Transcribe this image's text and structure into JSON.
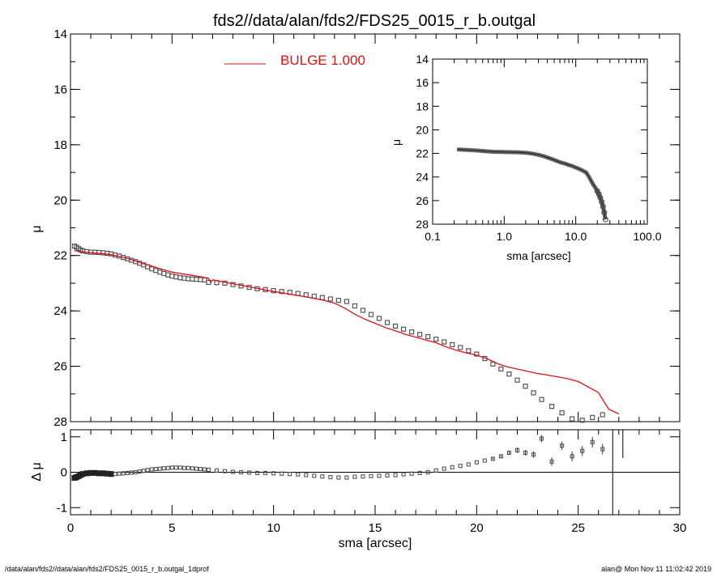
{
  "title": "fds2//data/alan/fds2/FDS25_0015_r_b.outgal",
  "legend": {
    "label": "BULGE  1.000",
    "color": "#e01010"
  },
  "footer": {
    "left": "/data/alan/fds2//data/alan/fds2/FDS25_0015_r_b.outgal_1dprof",
    "right": "alan@  Mon Nov 11 11:02:42 2019"
  },
  "chart_data": [
    {
      "name": "main-profile",
      "type": "scatter",
      "xlabel": "",
      "ylabel": "μ",
      "xlim": [
        0,
        30
      ],
      "ylim": [
        28,
        14
      ],
      "yticks": [
        "14",
        "16",
        "18",
        "20",
        "22",
        "24",
        "26",
        "28"
      ],
      "series": [
        {
          "name": "",
          "marker": "square",
          "color": "#555555",
          "x": [
            0.2,
            0.3,
            0.4,
            0.5,
            0.6,
            0.8,
            1.0,
            1.2,
            1.4,
            1.6,
            1.8,
            2.0,
            2.2,
            2.4,
            2.6,
            2.8,
            3.0,
            3.2,
            3.4,
            3.6,
            3.8,
            4.0,
            4.2,
            4.4,
            4.6,
            4.8,
            5.0,
            5.2,
            5.4,
            5.6,
            5.8,
            6.0,
            6.2,
            6.4,
            6.6,
            6.8,
            7.2,
            7.6,
            8.0,
            8.4,
            8.8,
            9.2,
            9.6,
            10.0,
            10.4,
            10.8,
            11.2,
            11.6,
            12.0,
            12.4,
            12.8,
            13.2,
            13.6,
            14.0,
            14.4,
            14.8,
            15.2,
            15.6,
            16.0,
            16.4,
            16.8,
            17.2,
            17.6,
            18.0,
            18.4,
            18.8,
            19.2,
            19.6,
            20.0,
            20.4,
            20.8,
            21.2,
            21.6,
            22.0,
            22.4,
            22.8,
            23.2,
            23.7,
            24.2,
            24.7,
            25.2,
            25.7,
            26.2
          ],
          "y": [
            21.66,
            21.7,
            21.75,
            21.8,
            21.83,
            21.86,
            21.88,
            21.88,
            21.89,
            21.9,
            21.92,
            21.94,
            21.98,
            22.02,
            22.07,
            22.12,
            22.17,
            22.22,
            22.28,
            22.34,
            22.41,
            22.48,
            22.54,
            22.6,
            22.65,
            22.7,
            22.74,
            22.77,
            22.8,
            22.82,
            22.84,
            22.85,
            22.86,
            22.87,
            22.88,
            22.97,
            22.98,
            23.0,
            23.05,
            23.1,
            23.15,
            23.2,
            23.23,
            23.27,
            23.3,
            23.33,
            23.37,
            23.42,
            23.47,
            23.52,
            23.57,
            23.62,
            23.66,
            23.82,
            23.98,
            24.13,
            24.27,
            24.42,
            24.55,
            24.66,
            24.76,
            24.85,
            24.93,
            25.02,
            25.12,
            25.22,
            25.32,
            25.44,
            25.56,
            25.72,
            25.92,
            26.1,
            26.28,
            26.5,
            26.72,
            26.96,
            27.2,
            27.45,
            27.68,
            27.9,
            27.95,
            27.85,
            27.75
          ]
        },
        {
          "name": "BULGE  1.000",
          "marker": "line",
          "color": "#e01010",
          "x": [
            0.2,
            0.5,
            1.0,
            1.5,
            2.0,
            2.5,
            3.0,
            3.5,
            4.0,
            4.5,
            5.0,
            5.5,
            6.0,
            6.5,
            6.8,
            6.9,
            7.0,
            7.5,
            8.0,
            8.5,
            9.0,
            9.5,
            10.0,
            10.5,
            11.0,
            11.5,
            12.0,
            12.5,
            13.0,
            13.5,
            14.0,
            14.5,
            15.0,
            15.5,
            16.0,
            16.5,
            17.0,
            17.5,
            18.0,
            18.5,
            19.0,
            19.5,
            20.0,
            20.5,
            21.0,
            21.5,
            22.0,
            22.5,
            23.0,
            23.5,
            24.0,
            24.5,
            25.0,
            25.5,
            26.0,
            26.5,
            27.0
          ],
          "y": [
            21.82,
            21.86,
            21.9,
            21.93,
            21.97,
            22.05,
            22.15,
            22.27,
            22.38,
            22.5,
            22.6,
            22.66,
            22.72,
            22.78,
            22.82,
            22.97,
            22.88,
            22.95,
            23.02,
            23.09,
            23.16,
            23.23,
            23.3,
            23.36,
            23.42,
            23.48,
            23.55,
            23.62,
            23.72,
            23.9,
            24.12,
            24.3,
            24.45,
            24.6,
            24.72,
            24.85,
            24.95,
            25.05,
            25.15,
            25.3,
            25.42,
            25.52,
            25.6,
            25.72,
            25.9,
            26.02,
            26.1,
            26.18,
            26.26,
            26.32,
            26.38,
            26.45,
            26.55,
            26.75,
            26.95,
            27.55,
            27.72
          ]
        }
      ]
    },
    {
      "name": "residual",
      "type": "scatter",
      "xlabel": "sma [arcsec]",
      "ylabel": "Δ μ",
      "xlim": [
        0,
        30
      ],
      "ylim": [
        -1.2,
        1.2
      ],
      "xticks": [
        "0",
        "5",
        "10",
        "15",
        "20",
        "25",
        "30"
      ],
      "yticks": [
        "1",
        "0",
        "-1"
      ],
      "series": [
        {
          "name": "",
          "marker": "square",
          "color": "#555555",
          "x": [
            0.2,
            0.3,
            0.4,
            0.5,
            0.6,
            0.8,
            1.0,
            1.2,
            1.4,
            1.6,
            1.8,
            2.0,
            2.2,
            2.4,
            2.6,
            2.8,
            3.0,
            3.2,
            3.4,
            3.6,
            3.8,
            4.0,
            4.2,
            4.4,
            4.6,
            4.8,
            5.0,
            5.2,
            5.4,
            5.6,
            5.8,
            6.0,
            6.2,
            6.4,
            6.6,
            6.8,
            7.2,
            7.6,
            8.0,
            8.4,
            8.8,
            9.2,
            9.6,
            10.0,
            10.4,
            10.8,
            11.2,
            11.6,
            12.0,
            12.4,
            12.8,
            13.2,
            13.6,
            14.0,
            14.4,
            14.8,
            15.2,
            15.6,
            16.0,
            16.4,
            16.8,
            17.2,
            17.6,
            18.0,
            18.4,
            18.8,
            19.2,
            19.6,
            20.0,
            20.4,
            20.8,
            21.2,
            21.6,
            22.0,
            22.4,
            22.8,
            23.2,
            23.7,
            24.2,
            24.7,
            25.2,
            25.7,
            26.2
          ],
          "y": [
            -0.16,
            -0.14,
            -0.11,
            -0.08,
            -0.05,
            -0.03,
            -0.02,
            -0.02,
            -0.03,
            -0.03,
            -0.04,
            -0.05,
            -0.05,
            -0.04,
            -0.03,
            -0.02,
            -0.01,
            0.0,
            0.02,
            0.04,
            0.06,
            0.08,
            0.09,
            0.1,
            0.11,
            0.12,
            0.13,
            0.13,
            0.13,
            0.12,
            0.12,
            0.11,
            0.1,
            0.09,
            0.08,
            0.07,
            0.05,
            0.03,
            0.01,
            0.0,
            -0.01,
            -0.02,
            -0.02,
            -0.03,
            -0.04,
            -0.05,
            -0.06,
            -0.08,
            -0.1,
            -0.12,
            -0.14,
            -0.15,
            -0.15,
            -0.13,
            -0.12,
            -0.11,
            -0.1,
            -0.09,
            -0.08,
            -0.06,
            -0.04,
            -0.02,
            0.0,
            0.05,
            0.1,
            0.14,
            0.18,
            0.22,
            0.28,
            0.33,
            0.38,
            0.45,
            0.55,
            0.62,
            0.55,
            0.5,
            0.95,
            0.3,
            0.75,
            0.45,
            0.6,
            0.85,
            0.65
          ],
          "err": [
            0,
            0,
            0,
            0,
            0,
            0,
            0,
            0,
            0,
            0,
            0,
            0,
            0,
            0,
            0,
            0,
            0,
            0,
            0,
            0,
            0,
            0,
            0,
            0,
            0,
            0,
            0,
            0,
            0,
            0,
            0,
            0,
            0,
            0,
            0,
            0,
            0,
            0,
            0,
            0,
            0,
            0,
            0,
            0,
            0,
            0,
            0,
            0,
            0,
            0,
            0,
            0,
            0,
            0,
            0,
            0,
            0,
            0,
            0,
            0,
            0,
            0,
            0,
            0,
            0,
            0,
            0,
            0,
            0,
            0,
            0.03,
            0.05,
            0.06,
            0.08,
            0.08,
            0.09,
            0.1,
            0.12,
            0.12,
            0.14,
            0.14,
            0.15,
            0.15
          ]
        }
      ]
    },
    {
      "name": "inset-log",
      "type": "scatter",
      "xlabel": "sma [arcsec]",
      "ylabel": "μ",
      "xscale": "log",
      "xlim": [
        0.1,
        100
      ],
      "ylim": [
        28,
        14
      ],
      "xticks": [
        "0.1",
        "1.0",
        "10.0",
        "100.0"
      ],
      "yticks": [
        "14",
        "16",
        "18",
        "20",
        "22",
        "24",
        "26",
        "28"
      ],
      "series": [
        {
          "name": "",
          "marker": "circle",
          "color": "#555555",
          "x": [
            0.22,
            0.3,
            0.4,
            0.55,
            0.7,
            0.9,
            1.2,
            1.5,
            2.0,
            2.5,
            3.0,
            3.5,
            4.0,
            5.0,
            6.0,
            7.0,
            8.0,
            9.0,
            10.0,
            11.0,
            12.0,
            13.0,
            14.0,
            15.0,
            16.0,
            17.0,
            18.0,
            19.0,
            20.0,
            21.0,
            22.0,
            23.0,
            24.0,
            25.0,
            26.0
          ],
          "y": [
            21.66,
            21.7,
            21.75,
            21.82,
            21.86,
            21.88,
            21.89,
            21.9,
            21.94,
            22.02,
            22.12,
            22.22,
            22.34,
            22.55,
            22.74,
            22.85,
            22.98,
            23.08,
            23.2,
            23.3,
            23.4,
            23.52,
            23.62,
            23.9,
            24.2,
            24.5,
            24.75,
            24.95,
            25.2,
            25.45,
            25.75,
            26.1,
            26.5,
            27.0,
            27.6
          ]
        }
      ]
    }
  ]
}
